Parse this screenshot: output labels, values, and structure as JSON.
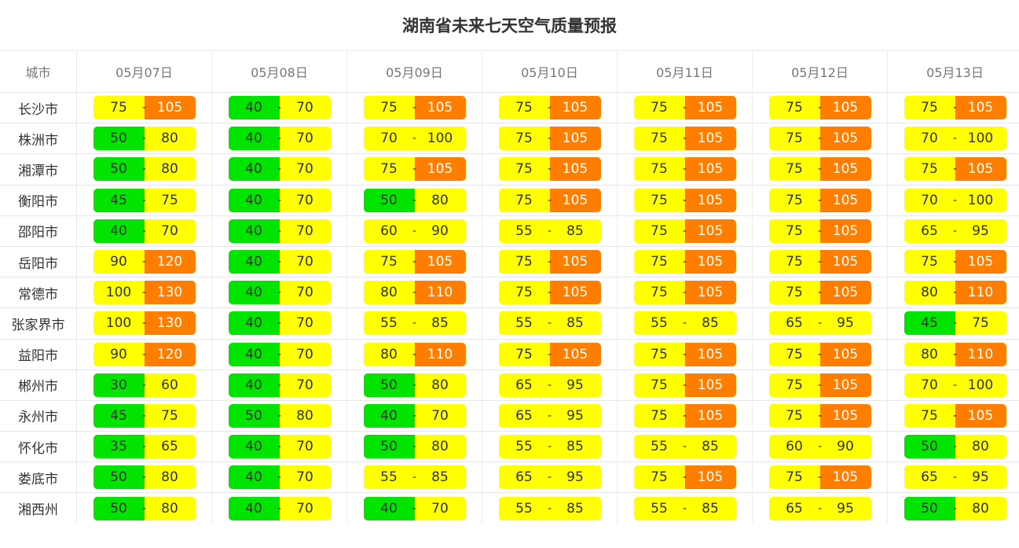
{
  "title": "湖南省未来七天空气质量预报",
  "header": {
    "city_label": "城市",
    "dates": [
      "05月07日",
      "05月08日",
      "05月09日",
      "05月10日",
      "05月11日",
      "05月12日",
      "05月13日"
    ]
  },
  "separator": "-",
  "level_colors": {
    "1": "#00e400",
    "2": "#ffff00",
    "3": "#ff7e00"
  },
  "rows": [
    {
      "city": "长沙市",
      "forecast": [
        {
          "low": "75",
          "high": "105",
          "low_level": 2,
          "high_level": 3
        },
        {
          "low": "40",
          "high": "70",
          "low_level": 1,
          "high_level": 2
        },
        {
          "low": "75",
          "high": "105",
          "low_level": 2,
          "high_level": 3
        },
        {
          "low": "75",
          "high": "105",
          "low_level": 2,
          "high_level": 3
        },
        {
          "low": "75",
          "high": "105",
          "low_level": 2,
          "high_level": 3
        },
        {
          "low": "75",
          "high": "105",
          "low_level": 2,
          "high_level": 3
        },
        {
          "low": "75",
          "high": "105",
          "low_level": 2,
          "high_level": 3
        }
      ]
    },
    {
      "city": "株洲市",
      "forecast": [
        {
          "low": "50",
          "high": "80",
          "low_level": 1,
          "high_level": 2
        },
        {
          "low": "40",
          "high": "70",
          "low_level": 1,
          "high_level": 2
        },
        {
          "low": "70",
          "high": "100",
          "low_level": 2,
          "high_level": 2
        },
        {
          "low": "75",
          "high": "105",
          "low_level": 2,
          "high_level": 3
        },
        {
          "low": "75",
          "high": "105",
          "low_level": 2,
          "high_level": 3
        },
        {
          "low": "75",
          "high": "105",
          "low_level": 2,
          "high_level": 3
        },
        {
          "low": "70",
          "high": "100",
          "low_level": 2,
          "high_level": 2
        }
      ]
    },
    {
      "city": "湘潭市",
      "forecast": [
        {
          "low": "50",
          "high": "80",
          "low_level": 1,
          "high_level": 2
        },
        {
          "low": "40",
          "high": "70",
          "low_level": 1,
          "high_level": 2
        },
        {
          "low": "75",
          "high": "105",
          "low_level": 2,
          "high_level": 3
        },
        {
          "low": "75",
          "high": "105",
          "low_level": 2,
          "high_level": 3
        },
        {
          "low": "75",
          "high": "105",
          "low_level": 2,
          "high_level": 3
        },
        {
          "low": "75",
          "high": "105",
          "low_level": 2,
          "high_level": 3
        },
        {
          "low": "75",
          "high": "105",
          "low_level": 2,
          "high_level": 3
        }
      ]
    },
    {
      "city": "衡阳市",
      "forecast": [
        {
          "low": "45",
          "high": "75",
          "low_level": 1,
          "high_level": 2
        },
        {
          "low": "40",
          "high": "70",
          "low_level": 1,
          "high_level": 2
        },
        {
          "low": "50",
          "high": "80",
          "low_level": 1,
          "high_level": 2
        },
        {
          "low": "75",
          "high": "105",
          "low_level": 2,
          "high_level": 3
        },
        {
          "low": "75",
          "high": "105",
          "low_level": 2,
          "high_level": 3
        },
        {
          "low": "75",
          "high": "105",
          "low_level": 2,
          "high_level": 3
        },
        {
          "low": "70",
          "high": "100",
          "low_level": 2,
          "high_level": 2
        }
      ]
    },
    {
      "city": "邵阳市",
      "forecast": [
        {
          "low": "40",
          "high": "70",
          "low_level": 1,
          "high_level": 2
        },
        {
          "low": "40",
          "high": "70",
          "low_level": 1,
          "high_level": 2
        },
        {
          "low": "60",
          "high": "90",
          "low_level": 2,
          "high_level": 2
        },
        {
          "low": "55",
          "high": "85",
          "low_level": 2,
          "high_level": 2
        },
        {
          "low": "75",
          "high": "105",
          "low_level": 2,
          "high_level": 3
        },
        {
          "low": "75",
          "high": "105",
          "low_level": 2,
          "high_level": 3
        },
        {
          "low": "65",
          "high": "95",
          "low_level": 2,
          "high_level": 2
        }
      ]
    },
    {
      "city": "岳阳市",
      "forecast": [
        {
          "low": "90",
          "high": "120",
          "low_level": 2,
          "high_level": 3
        },
        {
          "low": "40",
          "high": "70",
          "low_level": 1,
          "high_level": 2
        },
        {
          "low": "75",
          "high": "105",
          "low_level": 2,
          "high_level": 3
        },
        {
          "low": "75",
          "high": "105",
          "low_level": 2,
          "high_level": 3
        },
        {
          "low": "75",
          "high": "105",
          "low_level": 2,
          "high_level": 3
        },
        {
          "low": "75",
          "high": "105",
          "low_level": 2,
          "high_level": 3
        },
        {
          "low": "75",
          "high": "105",
          "low_level": 2,
          "high_level": 3
        }
      ]
    },
    {
      "city": "常德市",
      "forecast": [
        {
          "low": "100",
          "high": "130",
          "low_level": 2,
          "high_level": 3
        },
        {
          "low": "40",
          "high": "70",
          "low_level": 1,
          "high_level": 2
        },
        {
          "low": "80",
          "high": "110",
          "low_level": 2,
          "high_level": 3
        },
        {
          "low": "75",
          "high": "105",
          "low_level": 2,
          "high_level": 3
        },
        {
          "low": "75",
          "high": "105",
          "low_level": 2,
          "high_level": 3
        },
        {
          "low": "75",
          "high": "105",
          "low_level": 2,
          "high_level": 3
        },
        {
          "low": "80",
          "high": "110",
          "low_level": 2,
          "high_level": 3
        }
      ]
    },
    {
      "city": "张家界市",
      "forecast": [
        {
          "low": "100",
          "high": "130",
          "low_level": 2,
          "high_level": 3
        },
        {
          "low": "40",
          "high": "70",
          "low_level": 1,
          "high_level": 2
        },
        {
          "low": "55",
          "high": "85",
          "low_level": 2,
          "high_level": 2
        },
        {
          "low": "55",
          "high": "85",
          "low_level": 2,
          "high_level": 2
        },
        {
          "low": "55",
          "high": "85",
          "low_level": 2,
          "high_level": 2
        },
        {
          "low": "65",
          "high": "95",
          "low_level": 2,
          "high_level": 2
        },
        {
          "low": "45",
          "high": "75",
          "low_level": 1,
          "high_level": 2
        }
      ]
    },
    {
      "city": "益阳市",
      "forecast": [
        {
          "low": "90",
          "high": "120",
          "low_level": 2,
          "high_level": 3
        },
        {
          "low": "40",
          "high": "70",
          "low_level": 1,
          "high_level": 2
        },
        {
          "low": "80",
          "high": "110",
          "low_level": 2,
          "high_level": 3
        },
        {
          "low": "75",
          "high": "105",
          "low_level": 2,
          "high_level": 3
        },
        {
          "low": "75",
          "high": "105",
          "low_level": 2,
          "high_level": 3
        },
        {
          "low": "75",
          "high": "105",
          "low_level": 2,
          "high_level": 3
        },
        {
          "low": "80",
          "high": "110",
          "low_level": 2,
          "high_level": 3
        }
      ]
    },
    {
      "city": "郴州市",
      "forecast": [
        {
          "low": "30",
          "high": "60",
          "low_level": 1,
          "high_level": 2
        },
        {
          "low": "40",
          "high": "70",
          "low_level": 1,
          "high_level": 2
        },
        {
          "low": "50",
          "high": "80",
          "low_level": 1,
          "high_level": 2
        },
        {
          "low": "65",
          "high": "95",
          "low_level": 2,
          "high_level": 2
        },
        {
          "low": "75",
          "high": "105",
          "low_level": 2,
          "high_level": 3
        },
        {
          "low": "75",
          "high": "105",
          "low_level": 2,
          "high_level": 3
        },
        {
          "low": "70",
          "high": "100",
          "low_level": 2,
          "high_level": 2
        }
      ]
    },
    {
      "city": "永州市",
      "forecast": [
        {
          "low": "45",
          "high": "75",
          "low_level": 1,
          "high_level": 2
        },
        {
          "low": "50",
          "high": "80",
          "low_level": 1,
          "high_level": 2
        },
        {
          "low": "40",
          "high": "70",
          "low_level": 1,
          "high_level": 2
        },
        {
          "low": "65",
          "high": "95",
          "low_level": 2,
          "high_level": 2
        },
        {
          "low": "75",
          "high": "105",
          "low_level": 2,
          "high_level": 3
        },
        {
          "low": "75",
          "high": "105",
          "low_level": 2,
          "high_level": 3
        },
        {
          "low": "75",
          "high": "105",
          "low_level": 2,
          "high_level": 3
        }
      ]
    },
    {
      "city": "怀化市",
      "forecast": [
        {
          "low": "35",
          "high": "65",
          "low_level": 1,
          "high_level": 2
        },
        {
          "low": "40",
          "high": "70",
          "low_level": 1,
          "high_level": 2
        },
        {
          "low": "50",
          "high": "80",
          "low_level": 1,
          "high_level": 2
        },
        {
          "low": "55",
          "high": "85",
          "low_level": 2,
          "high_level": 2
        },
        {
          "low": "55",
          "high": "85",
          "low_level": 2,
          "high_level": 2
        },
        {
          "low": "60",
          "high": "90",
          "low_level": 2,
          "high_level": 2
        },
        {
          "low": "50",
          "high": "80",
          "low_level": 1,
          "high_level": 2
        }
      ]
    },
    {
      "city": "娄底市",
      "forecast": [
        {
          "low": "50",
          "high": "80",
          "low_level": 1,
          "high_level": 2
        },
        {
          "low": "40",
          "high": "70",
          "low_level": 1,
          "high_level": 2
        },
        {
          "low": "55",
          "high": "85",
          "low_level": 2,
          "high_level": 2
        },
        {
          "low": "65",
          "high": "95",
          "low_level": 2,
          "high_level": 2
        },
        {
          "low": "75",
          "high": "105",
          "low_level": 2,
          "high_level": 3
        },
        {
          "low": "75",
          "high": "105",
          "low_level": 2,
          "high_level": 3
        },
        {
          "low": "65",
          "high": "95",
          "low_level": 2,
          "high_level": 2
        }
      ]
    },
    {
      "city": "湘西州",
      "forecast": [
        {
          "low": "50",
          "high": "80",
          "low_level": 1,
          "high_level": 2
        },
        {
          "low": "40",
          "high": "70",
          "low_level": 1,
          "high_level": 2
        },
        {
          "low": "40",
          "high": "70",
          "low_level": 1,
          "high_level": 2
        },
        {
          "low": "55",
          "high": "85",
          "low_level": 2,
          "high_level": 2
        },
        {
          "low": "55",
          "high": "85",
          "low_level": 2,
          "high_level": 2
        },
        {
          "low": "65",
          "high": "95",
          "low_level": 2,
          "high_level": 2
        },
        {
          "low": "50",
          "high": "80",
          "low_level": 1,
          "high_level": 2
        }
      ]
    }
  ]
}
